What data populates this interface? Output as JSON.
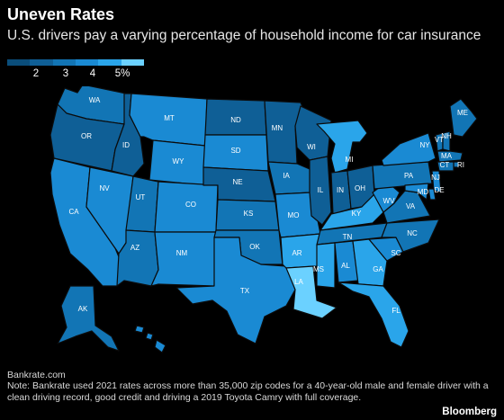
{
  "header": {
    "title": "Uneven Rates",
    "subtitle": "U.S. drivers pay a varying percentage of household income for car insurance"
  },
  "legend": {
    "colors": [
      "#0a4d7a",
      "#0f5f96",
      "#1275b5",
      "#1a8ad3",
      "#2aa5ea",
      "#6bd1ff"
    ],
    "labels": [
      "2",
      "3",
      "4",
      "5%"
    ]
  },
  "colors": {
    "background": "#000000",
    "outline": "#0b0b0b"
  },
  "states": [
    {
      "abbr": "WA",
      "level": 2
    },
    {
      "abbr": "OR",
      "level": 1
    },
    {
      "abbr": "CA",
      "level": 3
    },
    {
      "abbr": "NV",
      "level": 3
    },
    {
      "abbr": "ID",
      "level": 1
    },
    {
      "abbr": "MT",
      "level": 3
    },
    {
      "abbr": "WY",
      "level": 3
    },
    {
      "abbr": "UT",
      "level": 2
    },
    {
      "abbr": "AZ",
      "level": 2
    },
    {
      "abbr": "CO",
      "level": 3
    },
    {
      "abbr": "NM",
      "level": 3
    },
    {
      "abbr": "ND",
      "level": 1
    },
    {
      "abbr": "SD",
      "level": 3
    },
    {
      "abbr": "NE",
      "level": 1
    },
    {
      "abbr": "KS",
      "level": 2
    },
    {
      "abbr": "OK",
      "level": 2
    },
    {
      "abbr": "TX",
      "level": 3
    },
    {
      "abbr": "MN",
      "level": 1
    },
    {
      "abbr": "IA",
      "level": 2
    },
    {
      "abbr": "MO",
      "level": 3
    },
    {
      "abbr": "AR",
      "level": 4
    },
    {
      "abbr": "LA",
      "level": 5
    },
    {
      "abbr": "WI",
      "level": 1
    },
    {
      "abbr": "IL",
      "level": 1
    },
    {
      "abbr": "MI",
      "level": 4
    },
    {
      "abbr": "IN",
      "level": 1
    },
    {
      "abbr": "OH",
      "level": 1
    },
    {
      "abbr": "KY",
      "level": 4
    },
    {
      "abbr": "TN",
      "level": 2
    },
    {
      "abbr": "MS",
      "level": 4
    },
    {
      "abbr": "AL",
      "level": 3
    },
    {
      "abbr": "GA",
      "level": 4
    },
    {
      "abbr": "FL",
      "level": 4
    },
    {
      "abbr": "SC",
      "level": 3
    },
    {
      "abbr": "NC",
      "level": 2
    },
    {
      "abbr": "VA",
      "level": 2
    },
    {
      "abbr": "WV",
      "level": 3
    },
    {
      "abbr": "PA",
      "level": 2
    },
    {
      "abbr": "NY",
      "level": 3
    },
    {
      "abbr": "ME",
      "level": 2
    },
    {
      "abbr": "VT",
      "level": 2
    },
    {
      "abbr": "NH",
      "level": 2
    },
    {
      "abbr": "MA",
      "level": 2
    },
    {
      "abbr": "RI",
      "level": 2
    },
    {
      "abbr": "CT",
      "level": 2
    },
    {
      "abbr": "NJ",
      "level": 3
    },
    {
      "abbr": "DE",
      "level": 3
    },
    {
      "abbr": "MD",
      "level": 3
    },
    {
      "abbr": "AK",
      "level": 2
    },
    {
      "abbr": "HI",
      "level": 3
    }
  ],
  "footer": {
    "source": "Bankrate.com",
    "note": "Note: Bankrate used 2021 rates across more than 35,000 zip codes for a 40-year-old male and female driver with a clean driving record, good credit and driving a 2019 Toyota Camry with full coverage.",
    "brand": "Bloomberg"
  }
}
